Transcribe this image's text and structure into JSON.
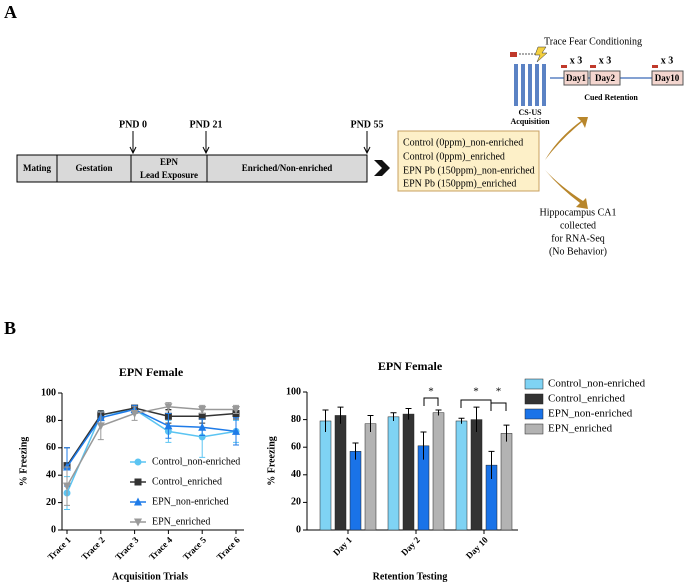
{
  "panel_labels": [
    "A",
    "B"
  ],
  "diagram": {
    "timeline_markers": [
      "PND 0",
      "PND 21",
      "PND 55"
    ],
    "timeline_stages": [
      "Mating",
      "Gestation",
      "EPN",
      "Lead Exposure",
      "Enriched/Non-enriched"
    ],
    "groups": [
      "Control (0ppm)_non-enriched",
      "Control (0ppm)_enriched",
      "EPN Pb (150ppm)_non-enriched",
      "EPN Pb (150ppm)_enriched"
    ],
    "behavior_title": "Trace  Fear Conditioning",
    "repeats": [
      "x 3",
      "x 3",
      "x 3"
    ],
    "days": [
      "Day1",
      "Day2",
      "Day10"
    ],
    "acquisition_label": [
      "CS-US",
      "Acquisition"
    ],
    "retention_label": "Cued Retention",
    "tissue_note": [
      "Hippocampus CA1",
      "collected",
      "for RNA-Seq",
      "(No Behavior)"
    ]
  },
  "chart_data": [
    {
      "type": "line",
      "title": "EPN Female",
      "y_label": "% Freezing",
      "x_label": "Acquisition Trials",
      "categories": [
        "Trace 1",
        "Trace 2",
        "Trace 3",
        "Trace 4",
        "Trace 5",
        "Trace 6"
      ],
      "ylim": [
        0,
        100
      ],
      "yticks": [
        0,
        20,
        40,
        60,
        80,
        100
      ],
      "series": [
        {
          "name": "Control_non-enriched",
          "color": "#5bc4f2",
          "marker": "circle",
          "values": [
            27,
            84,
            88,
            72,
            68,
            72
          ],
          "errors": [
            12,
            3,
            2,
            8,
            15,
            8
          ]
        },
        {
          "name": "Control_enriched",
          "color": "#333333",
          "marker": "square",
          "values": [
            47,
            84,
            89,
            83,
            83,
            85
          ],
          "errors": [
            13,
            3,
            2,
            5,
            5,
            4
          ]
        },
        {
          "name": "EPN_non-enriched",
          "color": "#1e7be8",
          "marker": "triangle-up",
          "values": [
            46,
            82,
            88,
            76,
            75,
            72
          ],
          "errors": [
            14,
            4,
            3,
            9,
            6,
            10
          ]
        },
        {
          "name": "EPN_enriched",
          "color": "#999999",
          "marker": "triangle-down",
          "values": [
            32,
            76,
            85,
            90,
            88,
            88
          ],
          "errors": [
            14,
            10,
            5,
            3,
            3,
            3
          ]
        }
      ]
    },
    {
      "type": "bar",
      "title": "EPN Female",
      "y_label": "% Freezing",
      "x_label": "Retention Testing",
      "categories": [
        "Day 1",
        "Day 2",
        "Day 10"
      ],
      "ylim": [
        0,
        100
      ],
      "yticks": [
        0,
        20,
        40,
        60,
        80,
        100
      ],
      "annotations": [
        "*",
        "*",
        "*"
      ],
      "series": [
        {
          "name": "Control_non-enriched",
          "color": "#7fd3f4",
          "values": [
            79,
            82,
            79
          ],
          "errors": [
            8,
            3,
            2
          ]
        },
        {
          "name": "Control_enriched",
          "color": "#333333",
          "values": [
            83,
            84,
            80
          ],
          "errors": [
            6,
            4,
            9
          ]
        },
        {
          "name": "EPN_non-enriched",
          "color": "#1a73e8",
          "values": [
            57,
            61,
            47
          ],
          "errors": [
            6,
            10,
            10
          ]
        },
        {
          "name": "EPN_enriched",
          "color": "#b3b3b3",
          "values": [
            77,
            85,
            70
          ],
          "errors": [
            6,
            2,
            6
          ]
        }
      ]
    }
  ]
}
